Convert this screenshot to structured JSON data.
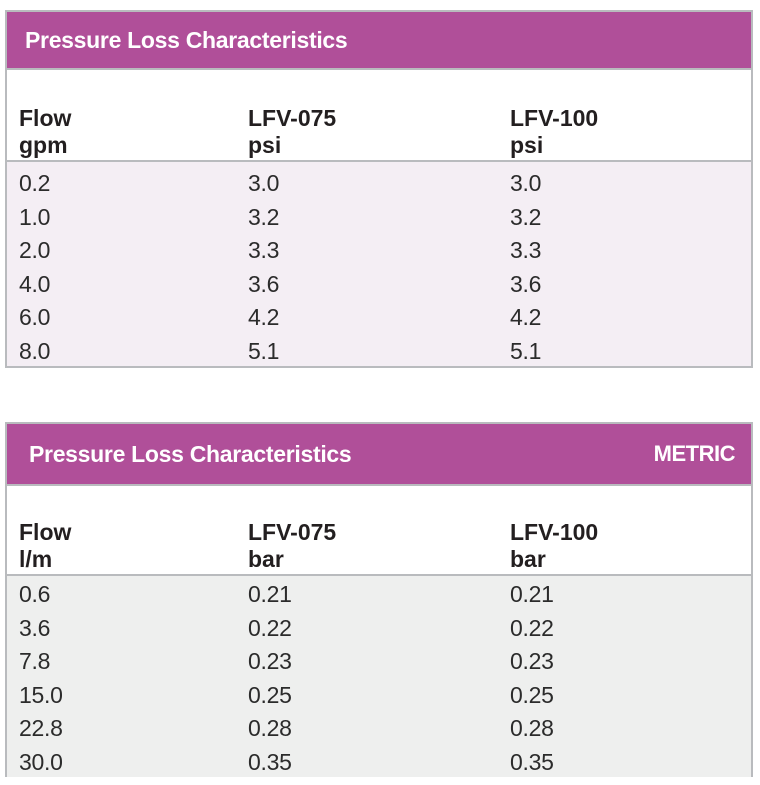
{
  "tables": [
    {
      "title": "Pressure Loss Characteristics",
      "tag": "",
      "headers": [
        {
          "name": "Flow",
          "unit": "gpm"
        },
        {
          "name": "LFV-075",
          "unit": "psi"
        },
        {
          "name": "LFV-100",
          "unit": "psi"
        }
      ],
      "rows": [
        [
          "0.2",
          "3.0",
          "3.0"
        ],
        [
          "1.0",
          "3.2",
          "3.2"
        ],
        [
          "2.0",
          "3.3",
          "3.3"
        ],
        [
          "4.0",
          "3.6",
          "3.6"
        ],
        [
          "6.0",
          "4.2",
          "4.2"
        ],
        [
          "8.0",
          "5.1",
          "5.1"
        ]
      ]
    },
    {
      "title": "Pressure Loss Characteristics",
      "tag": "METRIC",
      "headers": [
        {
          "name": "Flow",
          "unit": "l/m"
        },
        {
          "name": "LFV-075",
          "unit": "bar"
        },
        {
          "name": "LFV-100",
          "unit": "bar"
        }
      ],
      "rows": [
        [
          "0.6",
          "0.21",
          "0.21"
        ],
        [
          "3.6",
          "0.22",
          "0.22"
        ],
        [
          "7.8",
          "0.23",
          "0.23"
        ],
        [
          "15.0",
          "0.25",
          "0.25"
        ],
        [
          "22.8",
          "0.28",
          "0.28"
        ],
        [
          "30.0",
          "0.35",
          "0.35"
        ]
      ]
    }
  ]
}
